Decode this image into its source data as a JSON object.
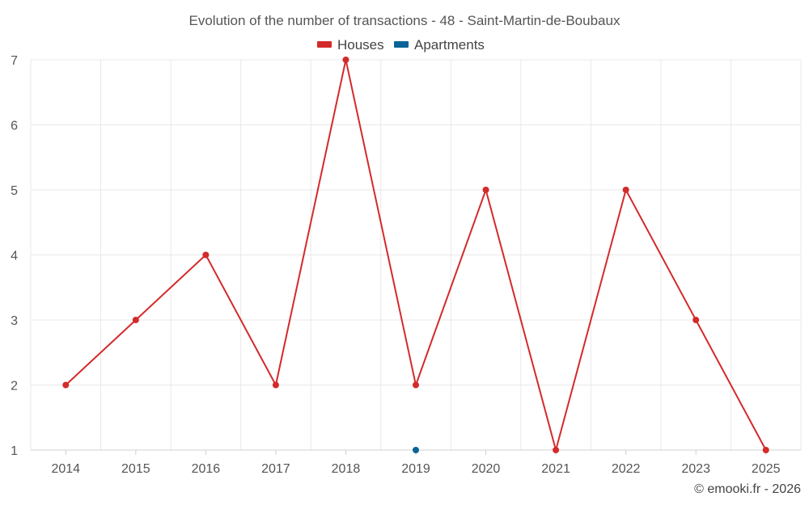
{
  "chart_data": {
    "type": "line",
    "title": "Evolution of the number of transactions - 48 - Saint-Martin-de-Boubaux",
    "x": [
      "2014",
      "2015",
      "2016",
      "2017",
      "2018",
      "2019",
      "2020",
      "2021",
      "2022",
      "2023",
      "2025"
    ],
    "series": [
      {
        "name": "Houses",
        "color": "#d42a2a",
        "values": [
          2,
          3,
          4,
          2,
          7,
          2,
          5,
          1,
          5,
          3,
          1
        ]
      },
      {
        "name": "Apartments",
        "color": "#0a6496",
        "values": [
          null,
          null,
          null,
          null,
          null,
          1,
          null,
          null,
          null,
          null,
          null
        ]
      }
    ],
    "ylim": [
      1,
      7
    ],
    "yticks": [
      1,
      2,
      3,
      4,
      5,
      6,
      7
    ],
    "grid": true,
    "legend_position": "top-center",
    "xlabel": "",
    "ylabel": ""
  },
  "credit": "© emooki.fr - 2026"
}
